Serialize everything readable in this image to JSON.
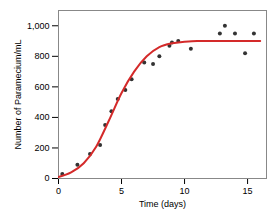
{
  "chart_data": {
    "type": "scatter",
    "x_label": "Time (days)",
    "y_label": "Number of Paramecium/mL",
    "xlim": [
      0,
      16.5
    ],
    "xticks": [
      0,
      5,
      10,
      15
    ],
    "ylim": [
      0,
      1100
    ],
    "yticks": [
      0,
      200,
      400,
      600,
      800,
      {
        "value": 1000,
        "label": "1,000"
      }
    ],
    "grid": false,
    "series": [
      {
        "type": "scatter",
        "color": "#333333",
        "marker": "circle",
        "x": [
          0.3,
          1.5,
          2.5,
          3.3,
          3.7,
          4.2,
          4.7,
          5.3,
          5.8,
          6.8,
          7.5,
          8.0,
          8.8,
          9.0,
          9.5,
          10.5,
          12.8,
          13.2,
          14.0,
          14.8,
          15.5
        ],
        "values": [
          30,
          90,
          160,
          220,
          350,
          440,
          520,
          580,
          650,
          760,
          750,
          800,
          870,
          890,
          900,
          850,
          950,
          1000,
          950,
          820,
          950
        ]
      },
      {
        "type": "line",
        "color": "#d42a2a",
        "line_style": "solid",
        "x": [
          0,
          1,
          2,
          3,
          4,
          5,
          6,
          7,
          8,
          9,
          10,
          11,
          12,
          14,
          16
        ],
        "values": [
          10,
          40,
          100,
          210,
          380,
          560,
          700,
          800,
          860,
          885,
          895,
          900,
          900,
          900,
          900
        ]
      }
    ]
  }
}
